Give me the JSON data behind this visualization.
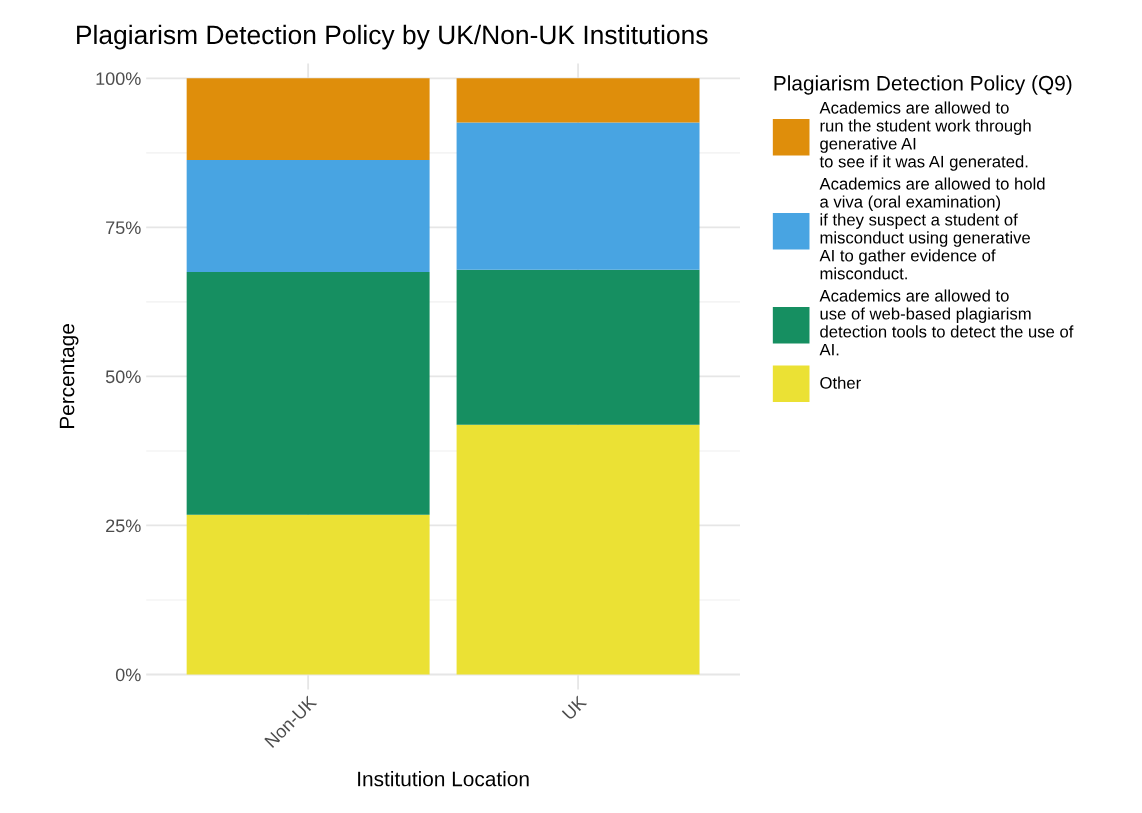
{
  "chart_data": {
    "type": "bar",
    "stacked": true,
    "title": "Plagiarism Detection Policy by UK/Non-UK Institutions",
    "xlabel": "Institution Location",
    "ylabel": "Percentage",
    "legend_title": "Plagiarism Detection Policy (Q9)",
    "categories": [
      "Non-UK",
      "UK"
    ],
    "series": [
      {
        "name": "Other",
        "color": "#ebe134",
        "values": [
          26.8,
          41.9
        ]
      },
      {
        "name": "Academics are allowed to\nuse of web-based plagiarism\ndetection tools to detect the use of\nAI.",
        "color": "#168f61",
        "values": [
          40.7,
          26.0
        ]
      },
      {
        "name": "Academics are allowed to hold\na viva (oral examination)\nif they suspect a student of\nmisconduct using generative\nAI to gather evidence of\nmisconduct.",
        "color": "#48a4e2",
        "values": [
          18.8,
          24.7
        ]
      },
      {
        "name": "Academics are allowed to\nrun the student work through\ngenerative AI\nto see if it was AI generated.",
        "color": "#df8e0b",
        "values": [
          13.7,
          7.4
        ]
      }
    ],
    "ylim": [
      -2.5,
      102.5
    ],
    "yticks": [
      {
        "value": 0,
        "label": "0%"
      },
      {
        "value": 25,
        "label": "25%"
      },
      {
        "value": 50,
        "label": "50%"
      },
      {
        "value": 75,
        "label": "75%"
      },
      {
        "value": 100,
        "label": "100%"
      }
    ],
    "grid": true,
    "legend": "right"
  }
}
